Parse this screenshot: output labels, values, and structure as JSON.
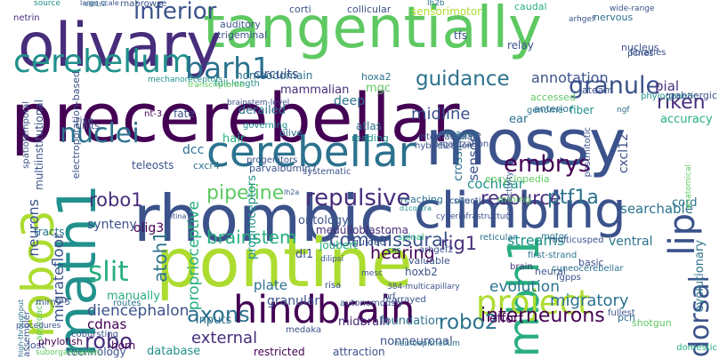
{
  "colors": {
    "c1": "#440154",
    "c2": "#472d7b",
    "c3": "#3b528b",
    "c4": "#2c728e",
    "c5": "#21918c",
    "c6": "#28ae80",
    "c7": "#5ec962",
    "c8": "#addc30",
    "c9": "#d8e219"
  },
  "words": [
    {
      "text": "precerebellar",
      "color": "c1"
    },
    {
      "text": "tangentially",
      "color": "c7"
    },
    {
      "text": "mossy",
      "color": "c3"
    },
    {
      "text": "olivary",
      "color": "c2"
    },
    {
      "text": "rhombic",
      "color": "c3"
    },
    {
      "text": "pontine",
      "color": "c8"
    },
    {
      "text": "climbing",
      "color": "c3"
    },
    {
      "text": "cerebellar",
      "color": "c4"
    },
    {
      "text": "hindbrain",
      "color": "c1"
    },
    {
      "text": "mbh1",
      "color": "c6"
    },
    {
      "text": "math1",
      "color": "c5"
    },
    {
      "text": "robo3",
      "color": "c8"
    },
    {
      "text": "project",
      "color": "c8"
    },
    {
      "text": "cerebellum",
      "color": "c5"
    },
    {
      "text": "barh1",
      "color": "c4"
    },
    {
      "text": "granule",
      "color": "c3"
    },
    {
      "text": "inferior",
      "color": "c3"
    },
    {
      "text": "guidance",
      "color": "c4"
    },
    {
      "text": "nuclei",
      "color": "c4"
    },
    {
      "text": "midline",
      "color": "c3"
    },
    {
      "text": "riken",
      "color": "c2"
    },
    {
      "text": "pial",
      "color": "c2"
    },
    {
      "text": "annotation",
      "color": "c3"
    },
    {
      "text": "embrys",
      "color": "c1"
    },
    {
      "text": "pipeline",
      "color": "c7"
    },
    {
      "text": "repulsive",
      "color": "c2"
    },
    {
      "text": "resource",
      "color": "c2"
    },
    {
      "text": "brainstem",
      "color": "c6"
    },
    {
      "text": "commissural",
      "color": "c3"
    },
    {
      "text": "slit",
      "color": "c6"
    },
    {
      "text": "axons",
      "color": "c4"
    },
    {
      "text": "robo1",
      "color": "c2"
    },
    {
      "text": "robo",
      "color": "c2"
    },
    {
      "text": "ptf1a",
      "color": "c4"
    },
    {
      "text": "interneurons",
      "color": "c1"
    },
    {
      "text": "robo2",
      "color": "c4"
    },
    {
      "text": "atoh1",
      "color": "c4"
    },
    {
      "text": "rig1",
      "color": "c2"
    },
    {
      "text": "hearing",
      "color": "c1"
    },
    {
      "text": "external",
      "color": "c2"
    },
    {
      "text": "dorsal",
      "color": "c3"
    },
    {
      "text": "lip",
      "color": "c3"
    },
    {
      "text": "sensory",
      "color": "c3"
    },
    {
      "text": "proprioceptive",
      "color": "c6"
    },
    {
      "text": "proprioceptors",
      "color": "c5"
    },
    {
      "text": "crossing",
      "color": "c4"
    },
    {
      "text": "cochlear",
      "color": "c5"
    },
    {
      "text": "floor",
      "color": "c3"
    },
    {
      "text": "migrate",
      "color": "c3"
    },
    {
      "text": "diencephalon",
      "color": "c3"
    },
    {
      "text": "cdnas",
      "color": "c1"
    },
    {
      "text": "neurons",
      "color": "c3"
    },
    {
      "text": "migratory",
      "color": "c4"
    },
    {
      "text": "evolution",
      "color": "c4"
    },
    {
      "text": "effort",
      "color": "c1"
    },
    {
      "text": "ventral",
      "color": "c4"
    },
    {
      "text": "evolutionary",
      "color": "c4"
    },
    {
      "text": "streams",
      "color": "c5"
    },
    {
      "text": "searchable",
      "color": "c4"
    },
    {
      "text": "cord",
      "color": "c4"
    },
    {
      "text": "ontology",
      "color": "c3"
    },
    {
      "text": "medulloblastoma",
      "color": "c2"
    },
    {
      "text": "olig3",
      "color": "c1"
    },
    {
      "text": "di1",
      "color": "c3"
    },
    {
      "text": "plate",
      "color": "c4"
    },
    {
      "text": "granular",
      "color": "c3"
    },
    {
      "text": "inputs",
      "color": "c4"
    },
    {
      "text": "database",
      "color": "c5"
    },
    {
      "text": "midbrain",
      "color": "c2"
    },
    {
      "text": "foundation",
      "color": "c4"
    },
    {
      "text": "nonneuronal",
      "color": "c3"
    },
    {
      "text": "restricted",
      "color": "c1"
    },
    {
      "text": "attraction",
      "color": "c3"
    },
    {
      "text": "horn",
      "color": "c1"
    },
    {
      "text": "technology",
      "color": "c3"
    },
    {
      "text": "lost",
      "color": "c3"
    },
    {
      "text": "phylofish",
      "color": "c1"
    },
    {
      "text": "synteny",
      "color": "c3"
    },
    {
      "text": "manually",
      "color": "c6"
    },
    {
      "text": "tracts",
      "color": "c4"
    },
    {
      "text": "teleosts",
      "color": "c3"
    },
    {
      "text": "cxcr4",
      "color": "c4"
    },
    {
      "text": "parvalbumin7",
      "color": "c3"
    },
    {
      "text": "dcc",
      "color": "c4"
    },
    {
      "text": "hair",
      "color": "c6"
    },
    {
      "text": "deep",
      "color": "c4"
    },
    {
      "text": "mammalian",
      "color": "c2"
    },
    {
      "text": "derailed",
      "color": "c4"
    },
    {
      "text": "homeodomain",
      "color": "c4"
    },
    {
      "text": "mgc",
      "color": "c7"
    },
    {
      "text": "hoxa2",
      "color": "c4"
    },
    {
      "text": "circuits",
      "color": "c3"
    },
    {
      "text": "auditory",
      "color": "c3"
    },
    {
      "text": "corti",
      "color": "c3"
    },
    {
      "text": "collicular",
      "color": "c3"
    },
    {
      "text": "sensorimotor",
      "color": "c8"
    },
    {
      "text": "caudal",
      "color": "c6"
    },
    {
      "text": "nervous",
      "color": "c4"
    },
    {
      "text": "netrin",
      "color": "c2"
    },
    {
      "text": "trigeminal",
      "color": "c3"
    },
    {
      "text": "tfs",
      "color": "c3"
    },
    {
      "text": "nucleus",
      "color": "c3"
    },
    {
      "text": "libraries",
      "color": "c3"
    },
    {
      "text": "pcnes",
      "color": "c3"
    },
    {
      "text": "relay",
      "color": "c3"
    },
    {
      "text": "ateam",
      "color": "c3"
    },
    {
      "text": "accessed",
      "color": "c7"
    },
    {
      "text": "anterior",
      "color": "c4"
    },
    {
      "text": "fiber",
      "color": "c5"
    },
    {
      "text": "accuracy",
      "color": "c6"
    },
    {
      "text": "cxcl12",
      "color": "c3"
    },
    {
      "text": "phylogenetic",
      "color": "c5"
    },
    {
      "text": "gabaergic",
      "color": "c3"
    },
    {
      "text": "genome",
      "color": "c4"
    },
    {
      "text": "ear",
      "color": "c4"
    },
    {
      "text": "images",
      "color": "c4"
    },
    {
      "text": "olive",
      "color": "c4"
    },
    {
      "text": "atlas",
      "color": "c4"
    },
    {
      "text": "fate",
      "color": "c3"
    },
    {
      "text": "rise",
      "color": "c3"
    },
    {
      "text": "units",
      "color": "c3"
    },
    {
      "text": "cobursting",
      "color": "c3"
    },
    {
      "text": "nt-3",
      "color": "c1"
    },
    {
      "text": "progenitors",
      "color": "c3"
    },
    {
      "text": "systematic",
      "color": "c3"
    },
    {
      "text": "governing",
      "color": "c5"
    },
    {
      "text": "reading",
      "color": "c5"
    },
    {
      "text": "international",
      "color": "c3"
    },
    {
      "text": "organization",
      "color": "c3"
    },
    {
      "text": "hybridization",
      "color": "c3"
    },
    {
      "text": "postmitotic",
      "color": "c3"
    },
    {
      "text": "encyclopedia",
      "color": "c7"
    },
    {
      "text": "spinal",
      "color": "c6"
    },
    {
      "text": "cns",
      "color": "c4"
    },
    {
      "text": "situ",
      "color": "c4"
    },
    {
      "text": "reaching",
      "color": "c4"
    },
    {
      "text": "collection",
      "color": "c3"
    },
    {
      "text": "guided",
      "color": "c3"
    },
    {
      "text": "joubert",
      "color": "c6"
    },
    {
      "text": "mining",
      "color": "c7"
    },
    {
      "text": "hoxb2",
      "color": "c3"
    },
    {
      "text": "brain",
      "color": "c2"
    },
    {
      "text": "motor",
      "color": "c4"
    },
    {
      "text": "multicusped",
      "color": "c3"
    },
    {
      "text": "reticular",
      "color": "c4"
    },
    {
      "text": "arhgef2",
      "color": "c3"
    },
    {
      "text": "valuable",
      "color": "c3"
    },
    {
      "text": "dilipsi",
      "color": "c3"
    },
    {
      "text": "mesc",
      "color": "c3"
    },
    {
      "text": "384-multicapillary",
      "color": "c3"
    },
    {
      "text": "risa",
      "color": "c3"
    },
    {
      "text": "orf",
      "color": "c3"
    },
    {
      "text": "rearrayed",
      "color": "c3"
    },
    {
      "text": "neural",
      "color": "c3"
    },
    {
      "text": "cuneocerebellar",
      "color": "c4"
    },
    {
      "text": "first-strand",
      "color": "c4"
    },
    {
      "text": "fgpps",
      "color": "c3"
    },
    {
      "text": "basic",
      "color": "c3"
    },
    {
      "text": "fullest",
      "color": "c3"
    },
    {
      "text": "pcn",
      "color": "c4"
    },
    {
      "text": "shotgun",
      "color": "c7"
    },
    {
      "text": "medaka",
      "color": "c3"
    },
    {
      "text": "routes",
      "color": "c4"
    },
    {
      "text": "autonomously",
      "color": "c3"
    },
    {
      "text": "neuroepithelium",
      "color": "c4"
    },
    {
      "text": "approach",
      "color": "c7"
    },
    {
      "text": "suborganization",
      "color": "c7"
    },
    {
      "text": "procedures",
      "color": "c3"
    },
    {
      "text": "assembler",
      "color": "c3"
    },
    {
      "text": "mirn9-5",
      "color": "c3"
    },
    {
      "text": "high-throughput",
      "color": "c4"
    },
    {
      "text": "spatiotemporal",
      "color": "c3"
    },
    {
      "text": "electroporation-based",
      "color": "c3"
    },
    {
      "text": "multiinstitutional",
      "color": "c3"
    },
    {
      "text": "full-length",
      "color": "c5"
    },
    {
      "text": "transcriptome",
      "color": "c7"
    },
    {
      "text": "mechanoreceptors",
      "color": "c5"
    },
    {
      "text": "source",
      "color": "c5"
    },
    {
      "text": "rnabrowse",
      "color": "c3"
    },
    {
      "text": "lh2b",
      "color": "c4"
    },
    {
      "text": "large-scale",
      "color": "c3"
    },
    {
      "text": "slit1/2",
      "color": "c4"
    },
    {
      "text": "arhgef",
      "color": "c3"
    },
    {
      "text": "wide-range",
      "color": "c3"
    },
    {
      "text": "brainstem-level",
      "color": "c3"
    },
    {
      "text": "lh2a",
      "color": "c3"
    },
    {
      "text": "connectivity",
      "color": "c3"
    },
    {
      "text": "d1contra",
      "color": "c5"
    },
    {
      "text": "cyberinfrastructure",
      "color": "c3"
    },
    {
      "text": "domestic",
      "color": "c6"
    },
    {
      "text": "anatomical",
      "color": "c7"
    },
    {
      "text": "ngf",
      "color": "c4"
    },
    {
      "text": "retina",
      "color": "c3"
    },
    {
      "text": "roof",
      "color": "c3"
    },
    {
      "text": "layers",
      "color": "c3"
    },
    {
      "text": "olbar",
      "color": "c3"
    }
  ]
}
